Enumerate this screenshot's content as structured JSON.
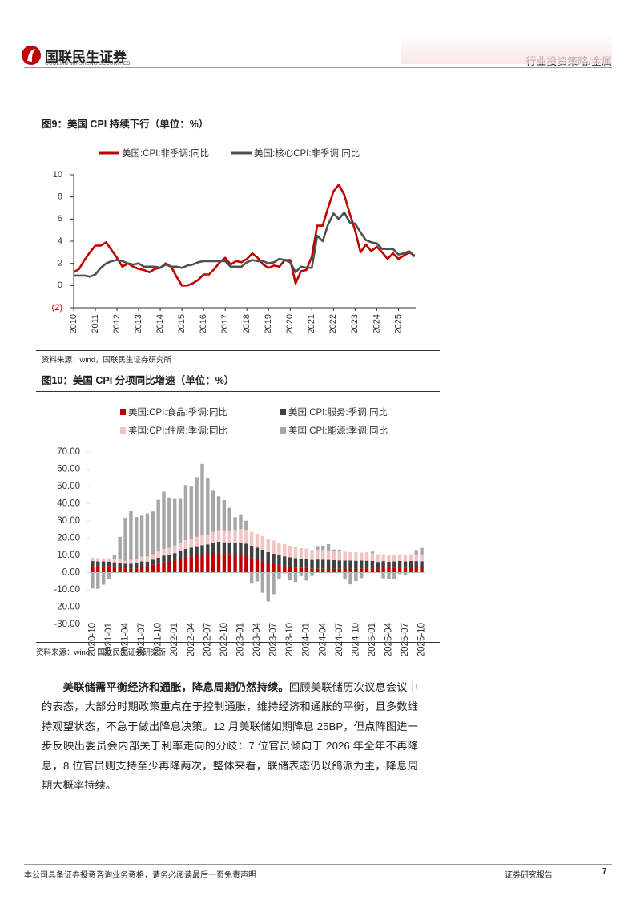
{
  "header": {
    "company": "国联民生证券",
    "company_en": "GUOLIAN MINSHENG SECURITIES",
    "section": "行业投资策略/金属"
  },
  "figures": [
    {
      "title": "图9：美国 CPI 持续下行（单位：%）",
      "source": "资料来源：wind，国联民生证券研究所"
    },
    {
      "title": "图10：美国 CPI 分项同比增速（单位：%）",
      "source": "资料来源：wind，国联民生证券研究所"
    }
  ],
  "chart_data": [
    {
      "type": "line",
      "x": [
        2010,
        2010.25,
        2010.5,
        2010.75,
        2011,
        2011.25,
        2011.5,
        2011.75,
        2012,
        2012.25,
        2012.5,
        2012.75,
        2013,
        2013.25,
        2013.5,
        2013.75,
        2014,
        2014.25,
        2014.5,
        2014.75,
        2015,
        2015.25,
        2015.5,
        2015.75,
        2016,
        2016.25,
        2016.5,
        2016.75,
        2017,
        2017.25,
        2017.5,
        2017.75,
        2018,
        2018.25,
        2018.5,
        2018.75,
        2019,
        2019.25,
        2019.5,
        2019.75,
        2020,
        2020.25,
        2020.5,
        2020.75,
        2021,
        2021.25,
        2021.5,
        2021.75,
        2022,
        2022.25,
        2022.5,
        2022.75,
        2023,
        2023.25,
        2023.5,
        2023.75,
        2024,
        2024.25,
        2024.5,
        2024.75,
        2025,
        2025.25,
        2025.5,
        2025.75
      ],
      "series": [
        {
          "name": "美国:CPI:非季调:同比",
          "color": "#c00000",
          "values": [
            1.2,
            1.5,
            2.3,
            3.0,
            3.6,
            3.6,
            3.9,
            3.2,
            2.5,
            1.7,
            2.0,
            1.7,
            1.5,
            1.4,
            1.2,
            1.5,
            1.6,
            2.0,
            1.7,
            0.8,
            0.0,
            0.0,
            0.2,
            0.5,
            1.0,
            1.0,
            1.5,
            2.1,
            2.5,
            1.9,
            2.2,
            2.1,
            2.4,
            2.9,
            2.5,
            1.9,
            1.6,
            1.8,
            1.7,
            2.3,
            2.3,
            0.2,
            1.3,
            1.4,
            2.6,
            5.4,
            5.4,
            7.0,
            8.5,
            9.1,
            8.2,
            6.5,
            5.0,
            3.0,
            3.7,
            3.1,
            3.5,
            3.0,
            2.4,
            2.9,
            2.4,
            2.7,
            3.0,
            2.7
          ]
        },
        {
          "name": "美国:核心CPI:非季调:同比",
          "color": "#505050",
          "values": [
            0.9,
            0.9,
            0.9,
            0.8,
            1.0,
            1.6,
            2.0,
            2.2,
            2.3,
            2.2,
            2.0,
            1.9,
            2.0,
            1.7,
            1.7,
            1.7,
            1.6,
            1.9,
            1.7,
            1.7,
            1.6,
            1.8,
            1.9,
            2.1,
            2.2,
            2.2,
            2.2,
            2.2,
            2.2,
            1.7,
            1.7,
            1.7,
            2.1,
            2.3,
            2.2,
            2.2,
            2.0,
            2.1,
            2.4,
            2.3,
            2.1,
            1.2,
            1.7,
            1.6,
            1.6,
            4.5,
            4.0,
            5.5,
            6.5,
            6.0,
            6.6,
            5.7,
            5.6,
            4.8,
            4.1,
            3.9,
            3.8,
            3.3,
            3.3,
            3.3,
            2.8,
            2.9,
            3.1,
            2.6
          ]
        }
      ],
      "xlim": [
        2010,
        2025.8
      ],
      "xticks": [
        2010,
        2011,
        2012,
        2013,
        2014,
        2015,
        2016,
        2017,
        2018,
        2019,
        2020,
        2021,
        2022,
        2023,
        2024,
        2025
      ],
      "ylim": [
        -2,
        10
      ],
      "yticks": [
        {
          "value": -2,
          "label": "(2)"
        },
        0,
        2,
        4,
        6,
        8,
        10
      ]
    },
    {
      "type": "bar",
      "categories": [
        "2020-10",
        null,
        null,
        "2021-01",
        null,
        null,
        "2021-04",
        null,
        null,
        "2021-07",
        null,
        null,
        "2021-10",
        null,
        null,
        "2022-01",
        null,
        null,
        "2022-04",
        null,
        null,
        "2022-07",
        null,
        null,
        "2022-10",
        null,
        null,
        "2023-01",
        null,
        null,
        "2023-04",
        null,
        null,
        "2023-07",
        null,
        null,
        "2023-10",
        null,
        null,
        "2024-01",
        null,
        null,
        "2024-04",
        null,
        null,
        "2024-07",
        null,
        null,
        "2024-10",
        null,
        null,
        "2025-01",
        null,
        null,
        "2025-04",
        null,
        null,
        "2025-07",
        null,
        null,
        "2025-10"
      ],
      "series": [
        {
          "name": "美国:CPI:食品:季调:同比",
          "color": "#c00000",
          "values": [
            3.9,
            3.7,
            3.9,
            3.8,
            3.6,
            3.5,
            2.4,
            2.2,
            2.4,
            3.4,
            3.7,
            4.6,
            5.3,
            6.1,
            6.3,
            7.0,
            7.9,
            8.8,
            9.4,
            10.1,
            10.4,
            10.9,
            11.4,
            11.2,
            10.9,
            10.6,
            10.4,
            10.1,
            9.5,
            8.5,
            7.7,
            6.7,
            5.7,
            4.9,
            4.3,
            3.7,
            3.3,
            2.9,
            2.7,
            2.6,
            2.2,
            2.2,
            2.2,
            2.1,
            2.2,
            2.2,
            2.1,
            2.3,
            2.1,
            2.4,
            2.5,
            2.5,
            1.9,
            3.0,
            2.8,
            2.9,
            3.0,
            2.9,
            3.2,
            3.1,
            3.1
          ]
        },
        {
          "name": "美国:CPI:服务:季调:同比",
          "color": "#404040",
          "values": [
            2.8,
            2.8,
            2.6,
            2.6,
            2.4,
            2.3,
            2.8,
            3.0,
            3.1,
            3.1,
            2.7,
            2.9,
            3.4,
            3.8,
            3.9,
            4.3,
            4.6,
            5.0,
            5.1,
            5.2,
            5.5,
            5.5,
            6.1,
            6.7,
            6.7,
            6.8,
            7.0,
            7.2,
            7.3,
            7.1,
            6.8,
            6.6,
            6.2,
            6.1,
            5.9,
            5.7,
            5.6,
            5.5,
            5.3,
            5.4,
            5.2,
            5.4,
            5.3,
            5.3,
            5.0,
            4.9,
            4.9,
            4.7,
            4.8,
            4.6,
            4.4,
            4.3,
            4.3,
            3.7,
            3.6,
            3.6,
            3.8,
            3.6,
            3.6,
            3.6,
            3.5
          ]
        },
        {
          "name": "美国:CPI:住房:季调:同比",
          "color": "#f2c4c4",
          "values": [
            2.1,
            2.0,
            2.0,
            1.9,
            1.9,
            1.8,
            1.6,
            2.1,
            2.3,
            2.8,
            3.0,
            3.2,
            3.5,
            3.8,
            4.1,
            4.4,
            4.7,
            5.0,
            5.1,
            5.5,
            5.6,
            5.7,
            6.2,
            6.6,
            6.9,
            7.1,
            7.5,
            7.9,
            8.1,
            8.2,
            8.1,
            8.0,
            7.8,
            7.7,
            7.3,
            7.2,
            6.7,
            6.5,
            6.2,
            6.0,
            5.7,
            5.7,
            5.5,
            5.4,
            5.2,
            5.1,
            5.2,
            4.9,
            4.9,
            4.7,
            4.6,
            4.4,
            4.2,
            4.0,
            4.0,
            3.9,
            3.8,
            3.7,
            3.6,
            3.6,
            3.6
          ]
        },
        {
          "name": "美国:CPI:能源:季调:同比",
          "color": "#a6a6a6",
          "values": [
            -9.2,
            -9.4,
            -7.0,
            -3.6,
            2.4,
            13.2,
            25.1,
            28.5,
            24.5,
            23.8,
            25.0,
            24.8,
            30.0,
            33.3,
            29.3,
            27.0,
            25.6,
            32.0,
            30.3,
            34.6,
            41.6,
            32.9,
            23.8,
            19.8,
            17.6,
            13.1,
            7.3,
            8.7,
            5.2,
            -6.4,
            -5.1,
            -11.7,
            -16.7,
            -12.5,
            -3.6,
            -0.5,
            -4.5,
            -5.4,
            -2.0,
            -4.6,
            -1.9,
            2.1,
            2.6,
            3.7,
            1.0,
            1.1,
            -4.0,
            -6.8,
            -4.9,
            -3.2,
            0.2,
            1.0,
            0.2,
            -3.3,
            -3.7,
            -3.5,
            -0.8,
            -1.6,
            0.2,
            2.8,
            4.2
          ]
        }
      ],
      "ylim": [
        -30,
        70
      ],
      "yticks": [
        {
          "value": -30,
          "label": "-30.00"
        },
        {
          "value": -20,
          "label": "-20.00"
        },
        {
          "value": -10,
          "label": "-10.00"
        },
        {
          "value": 0,
          "label": "0.00"
        },
        {
          "value": 10,
          "label": "10.00"
        },
        {
          "value": 20,
          "label": "20.00"
        },
        {
          "value": 30,
          "label": "30.00"
        },
        {
          "value": 40,
          "label": "40.00"
        },
        {
          "value": 50,
          "label": "50.00"
        },
        {
          "value": 60,
          "label": "60.00"
        },
        {
          "value": 70,
          "label": "70.00"
        }
      ]
    }
  ],
  "body": {
    "lead": "美联储需平衡经济和通胀，降息周期仍然持续。",
    "text": "回顾美联储历次议息会议中的表态，大部分时期政策重点在于控制通胀，维持经济和通胀的平衡，且多数维持观望状态，不急于做出降息决策。12 月美联储如期降息 25BP，但点阵图进一步反映出委员会内部关于利率走向的分歧：7 位官员倾向于 2026 年全年不再降息，8 位官员则支持至少再降两次，整体来看，联储表态仍以鸽派为主，降息周期大概率持续。"
  },
  "footer": {
    "disclaimer": "本公司具备证券投资咨询业务资格，请务必阅读最后一页免责声明",
    "label": "证券研究报告",
    "page": "7"
  }
}
